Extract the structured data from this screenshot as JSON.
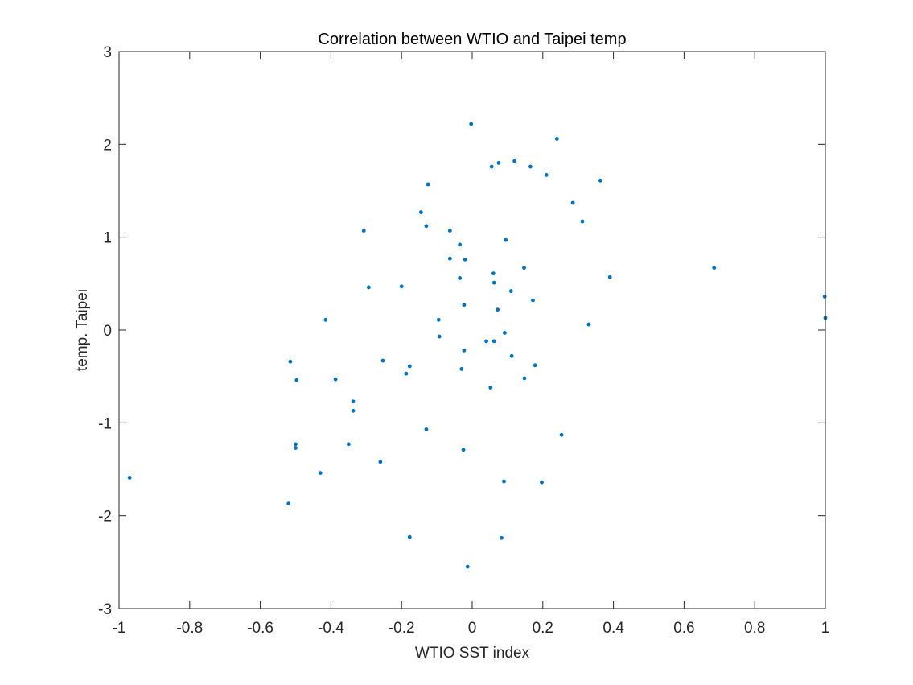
{
  "chart_data": {
    "type": "scatter",
    "title": "Correlation between WTIO and Taipei temp",
    "xlabel": "WTIO SST index",
    "ylabel": "temp. Taipei",
    "xlim": [
      -1,
      1
    ],
    "ylim": [
      -3,
      3
    ],
    "xticks": [
      "-1",
      "-0.8",
      "-0.6",
      "-0.4",
      "-0.2",
      "0",
      "0.2",
      "0.4",
      "0.6",
      "0.8",
      "1"
    ],
    "yticks": [
      "-3",
      "-2",
      "-1",
      "0",
      "1",
      "2",
      "3"
    ],
    "grid": false,
    "marker_color": "#0072BD",
    "series": [
      {
        "points": [
          [
            -0.97,
            -1.59
          ],
          [
            -0.52,
            -1.87
          ],
          [
            -0.515,
            -0.34
          ],
          [
            -0.5,
            -1.27
          ],
          [
            -0.5,
            -1.23
          ],
          [
            -0.497,
            -0.54
          ],
          [
            -0.43,
            -1.54
          ],
          [
            -0.415,
            0.11
          ],
          [
            -0.387,
            -0.53
          ],
          [
            -0.35,
            -1.23
          ],
          [
            -0.337,
            -0.77
          ],
          [
            -0.337,
            -0.87
          ],
          [
            -0.307,
            1.07
          ],
          [
            -0.293,
            0.46
          ],
          [
            -0.26,
            -1.42
          ],
          [
            -0.253,
            -0.33
          ],
          [
            -0.2,
            0.47
          ],
          [
            -0.187,
            -0.47
          ],
          [
            -0.177,
            -0.39
          ],
          [
            -0.177,
            -2.23
          ],
          [
            -0.145,
            1.27
          ],
          [
            -0.13,
            1.12
          ],
          [
            -0.13,
            -1.07
          ],
          [
            -0.125,
            1.57
          ],
          [
            -0.095,
            0.11
          ],
          [
            -0.093,
            -0.07
          ],
          [
            -0.063,
            1.07
          ],
          [
            -0.063,
            0.77
          ],
          [
            -0.035,
            0.92
          ],
          [
            -0.035,
            0.56
          ],
          [
            -0.03,
            -0.42
          ],
          [
            -0.025,
            -1.29
          ],
          [
            -0.023,
            0.27
          ],
          [
            -0.023,
            -0.22
          ],
          [
            -0.02,
            0.76
          ],
          [
            -0.013,
            -2.55
          ],
          [
            -0.003,
            2.22
          ],
          [
            0.04,
            -0.12
          ],
          [
            0.052,
            -0.62
          ],
          [
            0.055,
            1.76
          ],
          [
            0.06,
            0.61
          ],
          [
            0.062,
            0.51
          ],
          [
            0.062,
            -0.12
          ],
          [
            0.072,
            0.22
          ],
          [
            0.075,
            1.8
          ],
          [
            0.083,
            -2.24
          ],
          [
            0.09,
            -1.63
          ],
          [
            0.092,
            -0.03
          ],
          [
            0.095,
            0.97
          ],
          [
            0.11,
            0.42
          ],
          [
            0.112,
            -0.28
          ],
          [
            0.12,
            1.82
          ],
          [
            0.147,
            0.67
          ],
          [
            0.148,
            -0.52
          ],
          [
            0.165,
            1.76
          ],
          [
            0.172,
            0.32
          ],
          [
            0.178,
            -0.38
          ],
          [
            0.197,
            -1.64
          ],
          [
            0.21,
            1.67
          ],
          [
            0.24,
            2.06
          ],
          [
            0.253,
            -1.13
          ],
          [
            0.285,
            1.37
          ],
          [
            0.312,
            1.17
          ],
          [
            0.33,
            0.06
          ],
          [
            0.363,
            1.61
          ],
          [
            0.39,
            0.57
          ],
          [
            0.685,
            0.67
          ],
          [
            0.998,
            0.36
          ],
          [
            1.0,
            0.13
          ]
        ]
      }
    ]
  }
}
